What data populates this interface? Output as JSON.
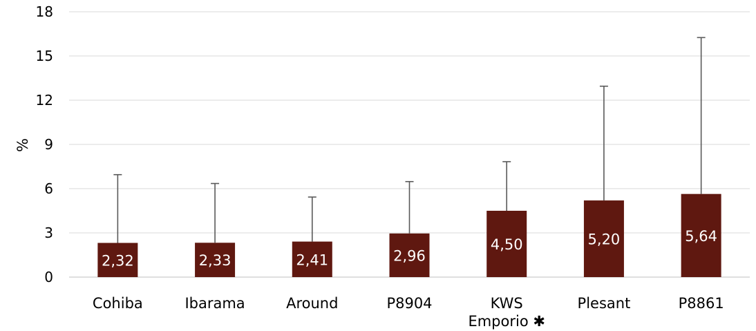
{
  "chart_data": {
    "type": "bar",
    "categories": [
      "Cohiba",
      "Ibarama",
      "Around",
      "P8904",
      "KWS\nEmporio ✱",
      "Plesant",
      "P8861"
    ],
    "values": [
      2.32,
      2.33,
      2.41,
      2.96,
      4.5,
      5.2,
      5.64
    ],
    "error_upper": [
      6.95,
      6.35,
      5.43,
      6.48,
      7.83,
      12.95,
      16.25
    ],
    "data_labels": [
      "2,32",
      "2,33",
      "2,41",
      "2,96",
      "4,50",
      "5,20",
      "5,64"
    ],
    "ylabel": "%",
    "ylim": [
      0,
      18
    ],
    "yticks": [
      0,
      3,
      6,
      9,
      12,
      15,
      18
    ],
    "grid": true,
    "bar_color": "#5f1810",
    "error_bar_color": "#595959"
  }
}
